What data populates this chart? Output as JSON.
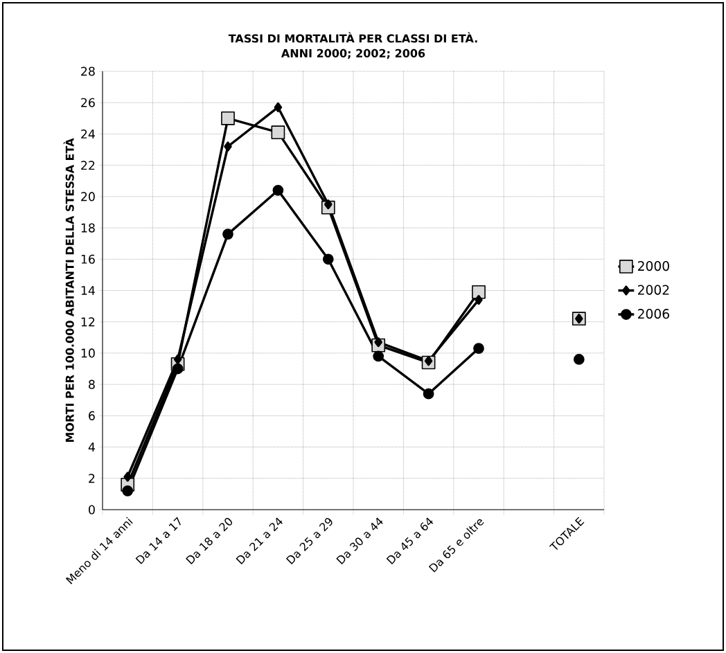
{
  "chart_data": {
    "type": "line",
    "title": "TASSI DI MORTALITÀ PER CLASSI DI ETÀ.",
    "subtitle": "ANNI 2000; 2002; 2006",
    "ylabel": "MORTI PER 100.000 ABITANTI DELLA STESSA ETÀ",
    "categories": [
      "Meno di 14 anni",
      "Da 14 a 17",
      "Da 18 a 20",
      "Da 21 a 24",
      "Da 25 a 29",
      "Da 30 a 44",
      "Da 45 a 64",
      "Da 65 e oltre",
      null,
      "TOTALE"
    ],
    "series": [
      {
        "name": "2000",
        "color": "#000000",
        "marker": "square",
        "values": [
          1.6,
          9.3,
          25.0,
          24.1,
          19.3,
          10.5,
          9.4,
          13.9,
          null,
          12.2
        ]
      },
      {
        "name": "2002",
        "color": "#000000",
        "marker": "diamond",
        "values": [
          2.1,
          9.6,
          23.2,
          25.7,
          19.5,
          10.7,
          9.5,
          13.4,
          null,
          12.2
        ]
      },
      {
        "name": "2006",
        "color": "#000000",
        "marker": "circle",
        "values": [
          1.2,
          9.0,
          17.6,
          20.4,
          16.0,
          9.8,
          7.4,
          10.3,
          null,
          9.6
        ]
      }
    ],
    "ylim": [
      0,
      28
    ],
    "yticks": [
      0,
      2,
      4,
      6,
      8,
      10,
      12,
      14,
      16,
      18,
      20,
      22,
      24,
      26,
      28
    ],
    "grid": true,
    "legend": "right",
    "line_style": "solid"
  }
}
